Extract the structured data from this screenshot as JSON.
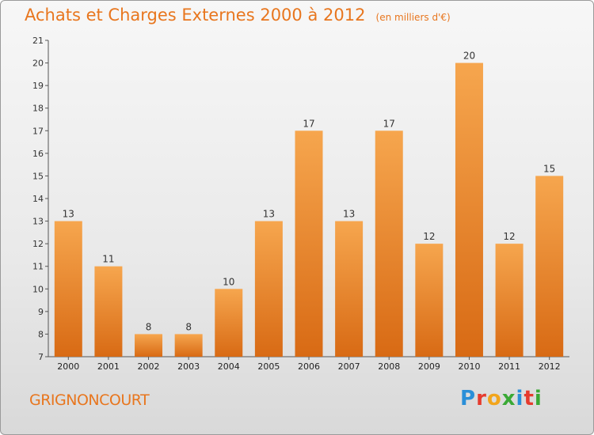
{
  "header": {
    "title": "Achats et Charges Externes 2000 à 2012",
    "unit": "(en milliers d'€)"
  },
  "footer": {
    "commune": "GRIGNONCOURT",
    "logo_letters": [
      "P",
      "r",
      "o",
      "x",
      "i",
      "t",
      "i"
    ],
    "logo_colors": [
      "#2a8fd8",
      "#e63b2e",
      "#f2a51c",
      "#3aa935",
      "#2a8fd8",
      "#e63b2e",
      "#3aa935"
    ]
  },
  "colors": {
    "bar_top": "#f6a64e",
    "bar_bottom": "#d86a14",
    "title": "#e8761e"
  },
  "chart_data": {
    "type": "bar",
    "categories": [
      "2000",
      "2001",
      "2002",
      "2003",
      "2004",
      "2005",
      "2006",
      "2007",
      "2008",
      "2009",
      "2010",
      "2011",
      "2012"
    ],
    "values": [
      13,
      11,
      8,
      8,
      10,
      13,
      17,
      13,
      17,
      12,
      20,
      12,
      15
    ],
    "value_labels": [
      "13",
      "11",
      "8",
      "8",
      "10",
      "13",
      "17",
      "13",
      "17",
      "12",
      "20",
      "12",
      "15"
    ],
    "y_ticks": [
      "7",
      "8",
      "9",
      "10",
      "11",
      "12",
      "13",
      "14",
      "15",
      "16",
      "17",
      "18",
      "19",
      "20",
      "21"
    ],
    "ylim": [
      7,
      21
    ],
    "grid": false,
    "legend": "none"
  }
}
